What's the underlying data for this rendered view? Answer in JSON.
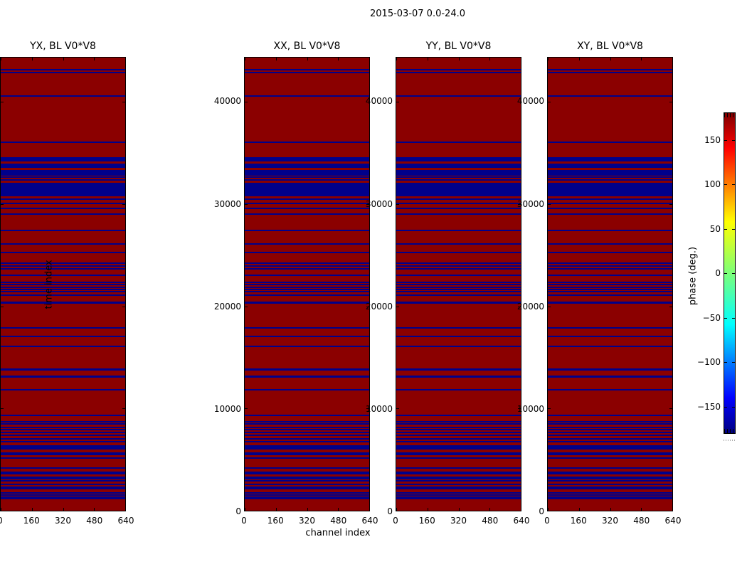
{
  "figure": {
    "suptitle": "2015-03-07 0.0-24.0"
  },
  "chart_data": {
    "type": "heatmap",
    "title": "2015-03-07 0.0-24.0",
    "panels": [
      {
        "title": "XX, BL V0*V8"
      },
      {
        "title": "YY, BL V0*V8"
      },
      {
        "title": "XY, BL V0*V8"
      },
      {
        "title": "YX, BL V0*V8"
      }
    ],
    "x": {
      "label": "channel index",
      "lim": [
        0,
        640
      ],
      "ticks": [
        0,
        160,
        320,
        480,
        640
      ]
    },
    "y": {
      "label": "time index",
      "lim": [
        0,
        44330
      ],
      "ticks": [
        0,
        10000,
        20000,
        30000,
        40000
      ]
    },
    "colorbar": {
      "label": "phase (deg.)",
      "lim": [
        -180,
        180
      ],
      "ticks": [
        150,
        100,
        50,
        0,
        -50,
        -100,
        -150
      ],
      "colormap": "jet",
      "gradient_stops": [
        [
          0,
          "#7f0000"
        ],
        [
          0.11,
          "#ff0000"
        ],
        [
          0.34,
          "#ffff00"
        ],
        [
          0.5,
          "#7cff79"
        ],
        [
          0.66,
          "#00ffff"
        ],
        [
          0.89,
          "#0000ff"
        ],
        [
          1,
          "#00007f"
        ]
      ]
    },
    "colors": {
      "phase_high": "#8b0000",
      "phase_low": "#00008b"
    },
    "flagged_time_ranges": [
      [
        43250,
        43110
      ],
      [
        42940,
        42800
      ],
      [
        40650,
        40510
      ],
      [
        36110,
        35970
      ],
      [
        34620,
        34170
      ],
      [
        33990,
        33510
      ],
      [
        33300,
        32780
      ],
      [
        32680,
        32540
      ],
      [
        32430,
        32290
      ],
      [
        32090,
        30770
      ],
      [
        30560,
        30420
      ],
      [
        30110,
        29970
      ],
      [
        29620,
        29490
      ],
      [
        29070,
        28930
      ],
      [
        27470,
        27330
      ],
      [
        26150,
        26020
      ],
      [
        25320,
        25180
      ],
      [
        24280,
        24140
      ],
      [
        24040,
        23900
      ],
      [
        23730,
        23590
      ],
      [
        23100,
        22960
      ],
      [
        22410,
        22270
      ],
      [
        22200,
        22060
      ],
      [
        21920,
        21780
      ],
      [
        21710,
        21580
      ],
      [
        21500,
        21370
      ],
      [
        21160,
        21020
      ],
      [
        20430,
        20260
      ],
      [
        17970,
        17830
      ],
      [
        17140,
        17000
      ],
      [
        16160,
        16030
      ],
      [
        13910,
        13740
      ],
      [
        13220,
        13040
      ],
      [
        11930,
        11760
      ],
      [
        9400,
        9230
      ],
      [
        8740,
        8600
      ],
      [
        8530,
        8390
      ],
      [
        8220,
        8080
      ],
      [
        8030,
        7890
      ],
      [
        7750,
        7610
      ],
      [
        7470,
        7330
      ],
      [
        7110,
        6970
      ],
      [
        6850,
        6690
      ],
      [
        6420,
        6000
      ],
      [
        5720,
        5580
      ],
      [
        5540,
        5400
      ],
      [
        5220,
        5080
      ],
      [
        4250,
        4110
      ],
      [
        3830,
        3570
      ],
      [
        3360,
        3230
      ],
      [
        3180,
        3040
      ],
      [
        2970,
        2830
      ],
      [
        2670,
        2530
      ],
      [
        2350,
        2100
      ],
      [
        1800,
        1660
      ],
      [
        1590,
        1450
      ],
      [
        1420,
        1280
      ],
      [
        1240,
        1100
      ]
    ]
  }
}
